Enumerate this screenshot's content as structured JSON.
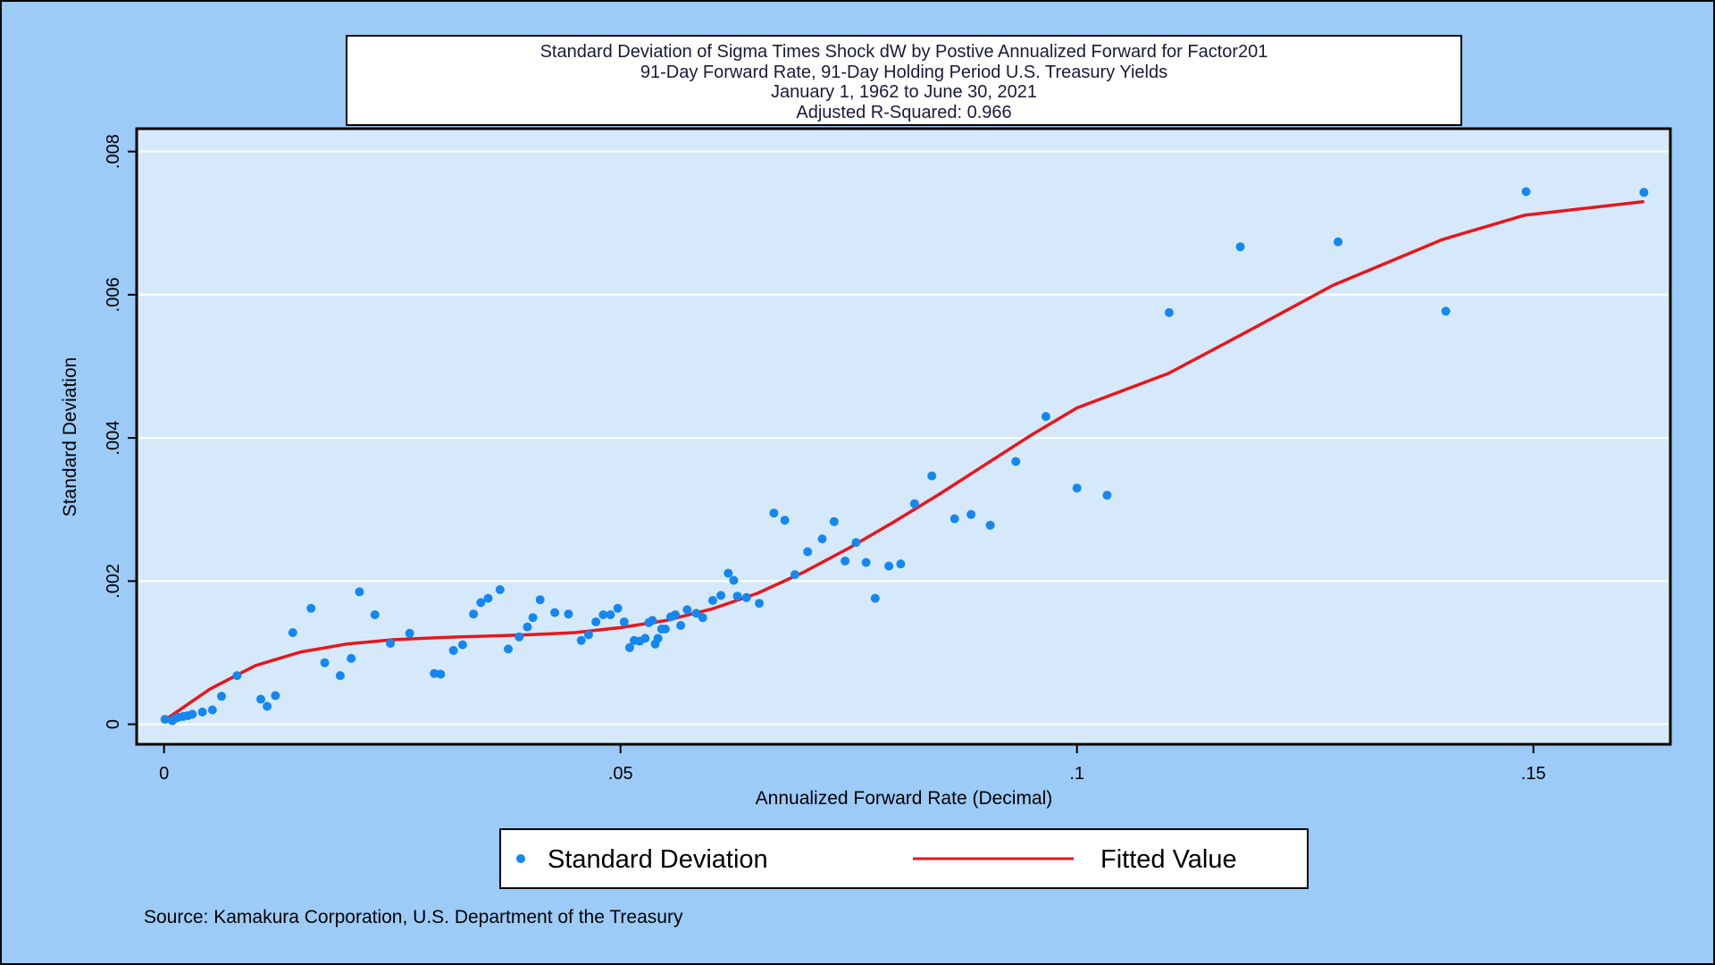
{
  "chart_data": {
    "type": "scatter",
    "title_lines": [
      "Standard Deviation of Sigma Times Shock dW by Postive Annualized Forward for Factor201",
      "91-Day Forward Rate, 91-Day Holding Period U.S. Treasury Yields",
      "January 1, 1962 to June 30, 2021",
      "Adjusted R-Squared: 0.966"
    ],
    "xlabel": "Annualized Forward Rate (Decimal)",
    "ylabel": "Standard Deviation",
    "xlim": [
      -0.003,
      0.165
    ],
    "ylim": [
      -0.00028,
      0.00832
    ],
    "x_ticks": [
      0,
      0.05,
      0.1,
      0.15
    ],
    "x_tick_labels": [
      "0",
      ".05",
      ".1",
      ".15"
    ],
    "y_ticks": [
      0,
      0.002,
      0.004,
      0.006,
      0.008
    ],
    "y_tick_labels": [
      "0",
      ".002",
      ".004",
      ".006",
      ".008"
    ],
    "grid": true,
    "legend_position": "bottom",
    "source": "Source: Kamakura Corporation, U.S. Department of the Treasury",
    "colors": {
      "background": "#9ccbf8",
      "plot_area": "#d6e9fb",
      "points": "#1487f0",
      "fit_line": "#e8161c",
      "grid": "#ffffff"
    },
    "series": [
      {
        "name": "Standard Deviation",
        "type": "scatter",
        "points": [
          [
            0.0001,
            7e-05
          ],
          [
            0.0009,
            5e-05
          ],
          [
            0.0012,
            8e-05
          ],
          [
            0.0016,
            0.0001
          ],
          [
            0.0021,
            0.00011
          ],
          [
            0.0026,
            0.00012
          ],
          [
            0.0031,
            0.00014
          ],
          [
            0.0042,
            0.00017
          ],
          [
            0.0053,
            0.0002
          ],
          [
            0.0063,
            0.00039
          ],
          [
            0.008,
            0.00068
          ],
          [
            0.0106,
            0.00035
          ],
          [
            0.0113,
            0.00025
          ],
          [
            0.0122,
            0.0004
          ],
          [
            0.0141,
            0.00128
          ],
          [
            0.0161,
            0.00162
          ],
          [
            0.0176,
            0.00086
          ],
          [
            0.0193,
            0.00068
          ],
          [
            0.0205,
            0.00092
          ],
          [
            0.0214,
            0.00185
          ],
          [
            0.0231,
            0.00153
          ],
          [
            0.0248,
            0.00113
          ],
          [
            0.0269,
            0.00127
          ],
          [
            0.0296,
            0.00071
          ],
          [
            0.0303,
            0.0007
          ],
          [
            0.0317,
            0.00103
          ],
          [
            0.0327,
            0.00111
          ],
          [
            0.0339,
            0.00154
          ],
          [
            0.0347,
            0.0017
          ],
          [
            0.0355,
            0.00176
          ],
          [
            0.0368,
            0.00188
          ],
          [
            0.0377,
            0.00105
          ],
          [
            0.0389,
            0.00122
          ],
          [
            0.0398,
            0.00136
          ],
          [
            0.0404,
            0.00149
          ],
          [
            0.0412,
            0.00174
          ],
          [
            0.0428,
            0.00156
          ],
          [
            0.0443,
            0.00154
          ],
          [
            0.0457,
            0.00117
          ],
          [
            0.0465,
            0.00125
          ],
          [
            0.0473,
            0.00143
          ],
          [
            0.0481,
            0.00153
          ],
          [
            0.0489,
            0.00153
          ],
          [
            0.0497,
            0.00162
          ],
          [
            0.0504,
            0.00143
          ],
          [
            0.051,
            0.00107
          ],
          [
            0.0515,
            0.00117
          ],
          [
            0.0521,
            0.00116
          ],
          [
            0.0527,
            0.0012
          ],
          [
            0.0531,
            0.00142
          ],
          [
            0.0535,
            0.00145
          ],
          [
            0.0538,
            0.00112
          ],
          [
            0.0541,
            0.0012
          ],
          [
            0.0545,
            0.00133
          ],
          [
            0.0549,
            0.00133
          ],
          [
            0.0555,
            0.0015
          ],
          [
            0.056,
            0.00153
          ],
          [
            0.0566,
            0.00138
          ],
          [
            0.0573,
            0.0016
          ],
          [
            0.0583,
            0.00155
          ],
          [
            0.059,
            0.00149
          ],
          [
            0.0601,
            0.00173
          ],
          [
            0.061,
            0.0018
          ],
          [
            0.0618,
            0.00211
          ],
          [
            0.0624,
            0.00201
          ],
          [
            0.0628,
            0.00179
          ],
          [
            0.0638,
            0.00177
          ],
          [
            0.0652,
            0.00169
          ],
          [
            0.0668,
            0.00295
          ],
          [
            0.068,
            0.00285
          ],
          [
            0.0691,
            0.00209
          ],
          [
            0.0705,
            0.00241
          ],
          [
            0.0721,
            0.00259
          ],
          [
            0.0734,
            0.00283
          ],
          [
            0.0746,
            0.00228
          ],
          [
            0.0758,
            0.00254
          ],
          [
            0.0769,
            0.00226
          ],
          [
            0.0779,
            0.00176
          ],
          [
            0.0794,
            0.00221
          ],
          [
            0.0807,
            0.00224
          ],
          [
            0.0822,
            0.00308
          ],
          [
            0.0841,
            0.00347
          ],
          [
            0.0866,
            0.00287
          ],
          [
            0.0884,
            0.00293
          ],
          [
            0.0905,
            0.00278
          ],
          [
            0.0933,
            0.00367
          ],
          [
            0.0966,
            0.0043
          ],
          [
            0.1,
            0.0033
          ],
          [
            0.1033,
            0.0032
          ],
          [
            0.1101,
            0.00575
          ],
          [
            0.1179,
            0.00667
          ],
          [
            0.1286,
            0.00674
          ],
          [
            0.1404,
            0.00577
          ],
          [
            0.1492,
            0.00744
          ],
          [
            0.1621,
            0.00743
          ]
        ]
      },
      {
        "name": "Fitted Value",
        "type": "line",
        "points": [
          [
            0.0001,
            6e-05
          ],
          [
            0.005,
            0.00049
          ],
          [
            0.01,
            0.00082
          ],
          [
            0.015,
            0.00101
          ],
          [
            0.02,
            0.00112
          ],
          [
            0.025,
            0.00118
          ],
          [
            0.03,
            0.00121
          ],
          [
            0.035,
            0.00123
          ],
          [
            0.04,
            0.00125
          ],
          [
            0.045,
            0.00128
          ],
          [
            0.05,
            0.00135
          ],
          [
            0.055,
            0.00145
          ],
          [
            0.06,
            0.00161
          ],
          [
            0.065,
            0.00183
          ],
          [
            0.07,
            0.00212
          ],
          [
            0.075,
            0.00246
          ],
          [
            0.08,
            0.00283
          ],
          [
            0.085,
            0.00322
          ],
          [
            0.09,
            0.00363
          ],
          [
            0.095,
            0.00404
          ],
          [
            0.1,
            0.00442
          ],
          [
            0.11,
            0.0049
          ],
          [
            0.118,
            0.00544
          ],
          [
            0.128,
            0.00613
          ],
          [
            0.14,
            0.00677
          ],
          [
            0.149,
            0.00711
          ],
          [
            0.162,
            0.0073
          ]
        ]
      }
    ]
  }
}
